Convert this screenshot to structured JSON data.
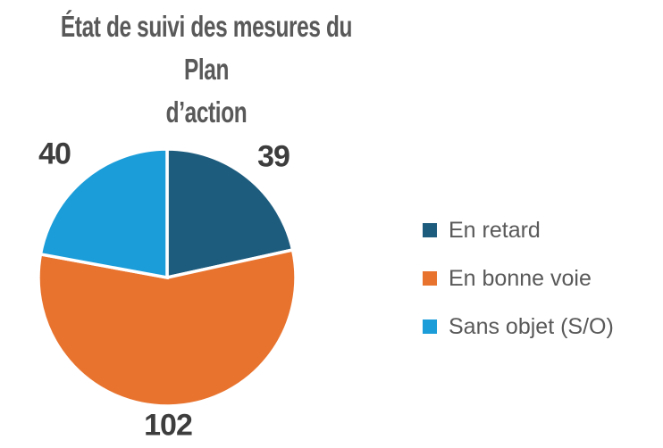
{
  "header": {
    "title_line1": "État de suivi des mesures du Plan",
    "title_line2": "d’action"
  },
  "chart_data": {
    "type": "pie",
    "title": "État de suivi des mesures du Plan d’action",
    "labels": [
      "En retard",
      "En bonne voie",
      "Sans objet (S/O)"
    ],
    "values": [
      39,
      102,
      40
    ],
    "colors": [
      "#1E5C7E",
      "#E8732E",
      "#1B9DD9"
    ],
    "total": 181,
    "start_angle_deg": 0,
    "direction": "clockwise",
    "legend_position": "right",
    "data_labels_position": "outside-end",
    "slice_separator_color": "#FFFFFF",
    "background": "#FFFFFF",
    "text_colors": {
      "title": "#595959",
      "data_label": "#3D3D3D",
      "legend": "#595959"
    }
  }
}
